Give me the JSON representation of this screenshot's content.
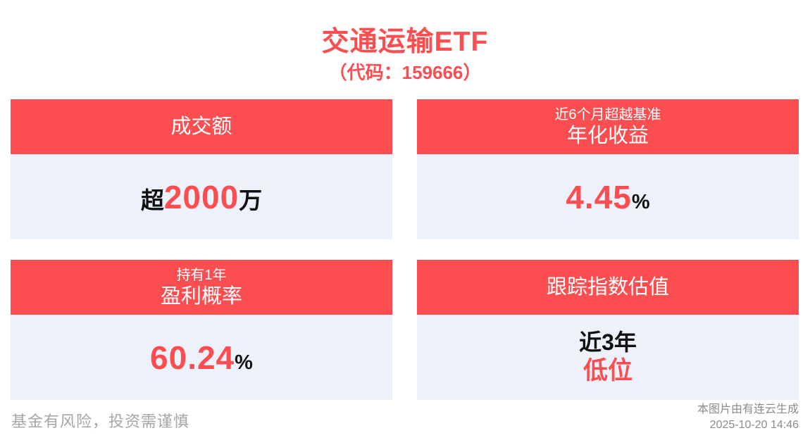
{
  "colors": {
    "accent": "#fc4d50",
    "card_body_bg": "#edf1fc",
    "text_dark": "#111111",
    "muted": "#a6a6a6",
    "muted_dark": "#8c8c8c"
  },
  "header": {
    "title": "交通运输ETF",
    "subtitle": "（代码：159666）"
  },
  "cards": [
    {
      "header_main": "成交额",
      "value_prefix": "超",
      "value_highlight": "2000",
      "value_suffix": "万"
    },
    {
      "header_small": "近6个月超越基准",
      "header_main": "年化收益",
      "value_highlight": "4.45",
      "value_suffix": "%"
    },
    {
      "header_small": "持有1年",
      "header_main": "盈利概率",
      "value_highlight": "60.24",
      "value_suffix": "%"
    },
    {
      "header_main": "跟踪指数估值",
      "value_line1": "近3年",
      "value_line2": "低位"
    }
  ],
  "footer": {
    "disclaimer": "基金有风险，投资需谨慎",
    "source": "本图片由有连云生成",
    "timestamp": "2025-10-20 14:46"
  }
}
